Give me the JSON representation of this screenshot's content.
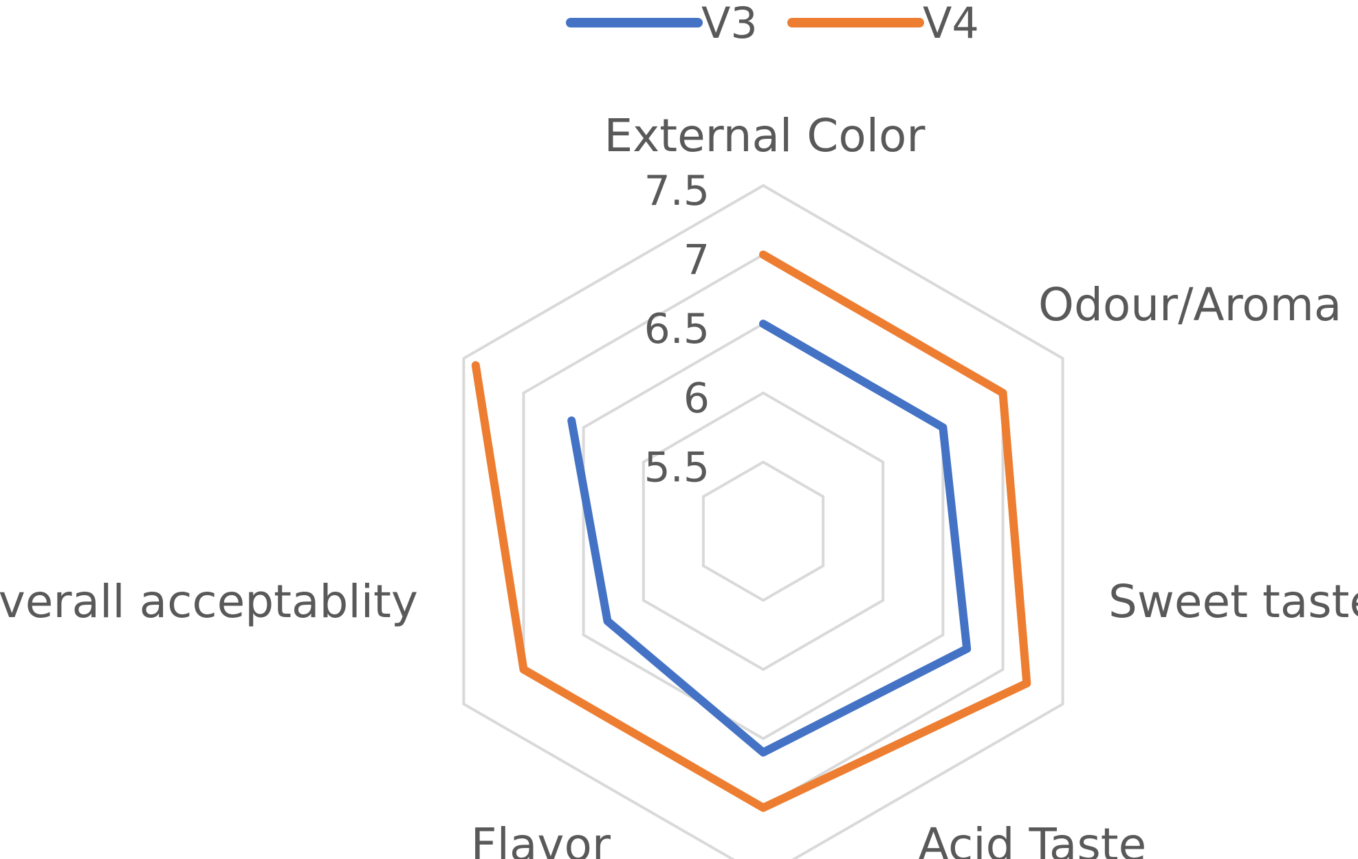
{
  "chart_data": {
    "type": "radar",
    "categories": [
      "External Color",
      "Odour/Aroma",
      "Sweet taste",
      "Acid Taste",
      "Flavor",
      "Overall acceptablity"
    ],
    "series": [
      {
        "name": "V3",
        "color": "#4472C4",
        "values": [
          6.5,
          6.5,
          6.7,
          6.6,
          6.3,
          6.6
        ]
      },
      {
        "name": "V4",
        "color": "#ED7D31",
        "values": [
          7.0,
          7.0,
          7.2,
          7.0,
          7.0,
          7.4
        ]
      }
    ],
    "rlim": [
      5.0,
      7.5
    ],
    "ticks": [
      "5.5",
      "6",
      "6.5",
      "7",
      "7.5"
    ],
    "tick_values": [
      5.5,
      6.0,
      6.5,
      7.0,
      7.5
    ],
    "grid_color": "#D9D9D9",
    "legend": "top"
  }
}
